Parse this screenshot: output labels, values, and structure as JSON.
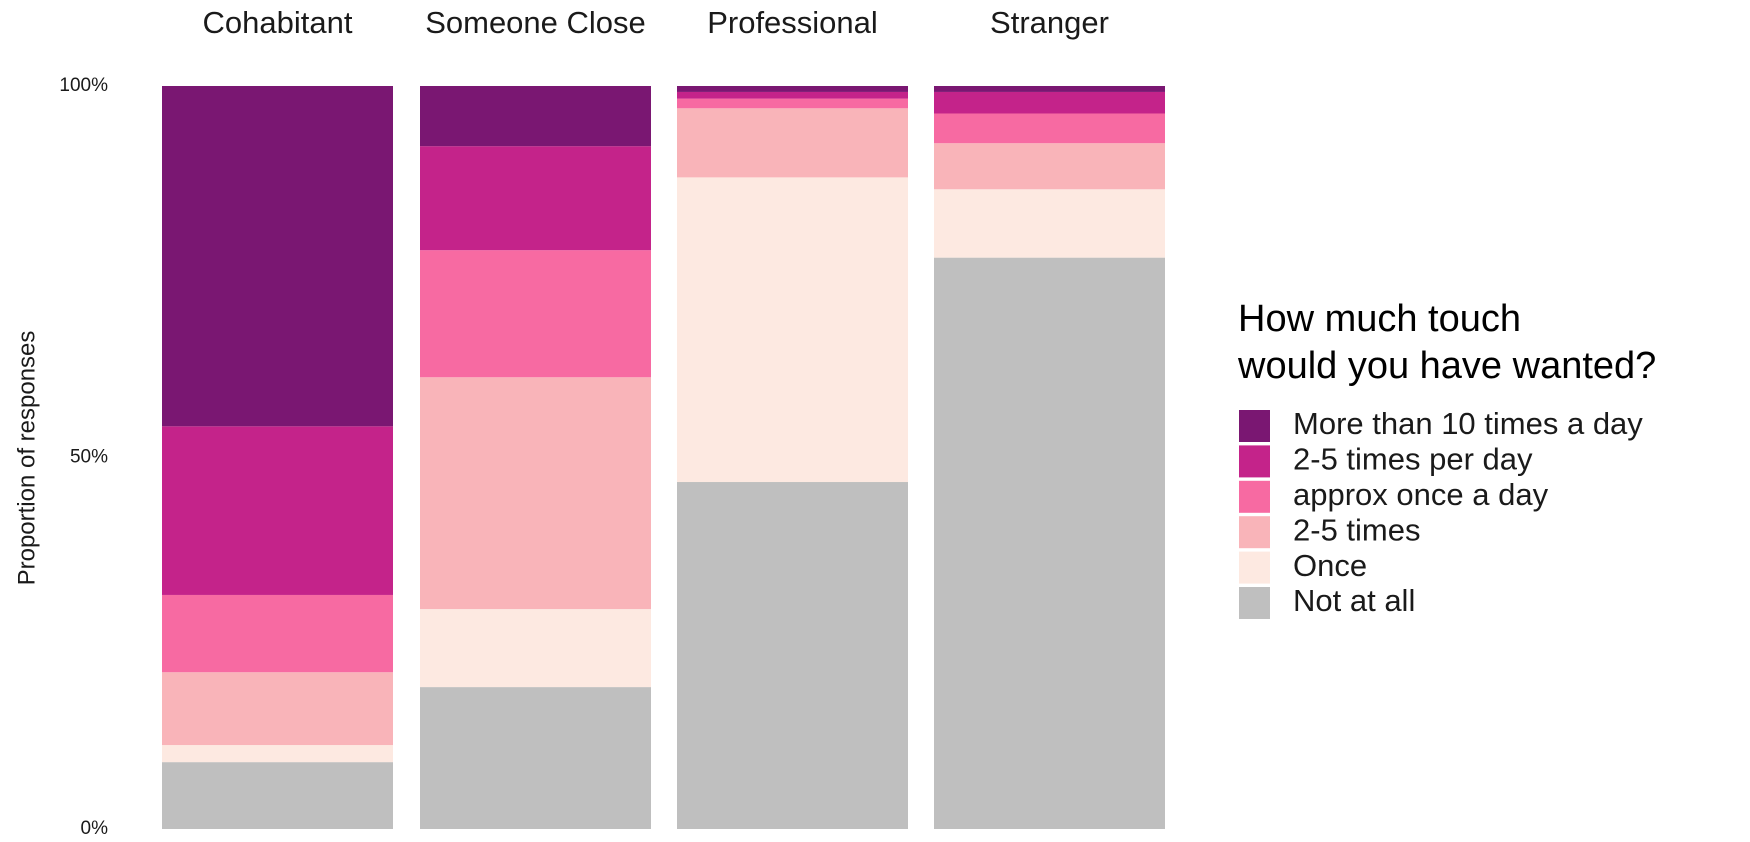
{
  "chart_data": {
    "type": "stacked_bar",
    "y_axis_label": "Proportion of responses",
    "legend_title": "How much touch\nwould you have wanted?",
    "categories": [
      "Cohabitant",
      "Someone Close",
      "Professional",
      "Stranger"
    ],
    "series": [
      {
        "name": "More than 10 times a day",
        "color": "#7a1772",
        "values": [
          45.8,
          8.1,
          0.8,
          0.8
        ]
      },
      {
        "name": "2-5 times per day",
        "color": "#c4238a",
        "values": [
          22.7,
          14.0,
          0.9,
          2.9
        ]
      },
      {
        "name": "approx once a day",
        "color": "#f76aa2",
        "values": [
          10.4,
          17.1,
          1.3,
          4.0
        ]
      },
      {
        "name": "2-5 times",
        "color": "#f9b4b9",
        "values": [
          9.8,
          31.2,
          9.3,
          6.2
        ]
      },
      {
        "name": "Once",
        "color": "#fde9e1",
        "values": [
          2.3,
          10.5,
          41.0,
          9.2
        ]
      },
      {
        "name": "Not at all",
        "color": "#bfbfbf",
        "values": [
          9.0,
          19.1,
          46.7,
          76.9
        ]
      }
    ],
    "ylim": [
      0,
      100
    ],
    "yticks": [
      {
        "value": 0,
        "label": "0%"
      },
      {
        "value": 50,
        "label": "50%"
      },
      {
        "value": 100,
        "label": "100%"
      }
    ]
  }
}
